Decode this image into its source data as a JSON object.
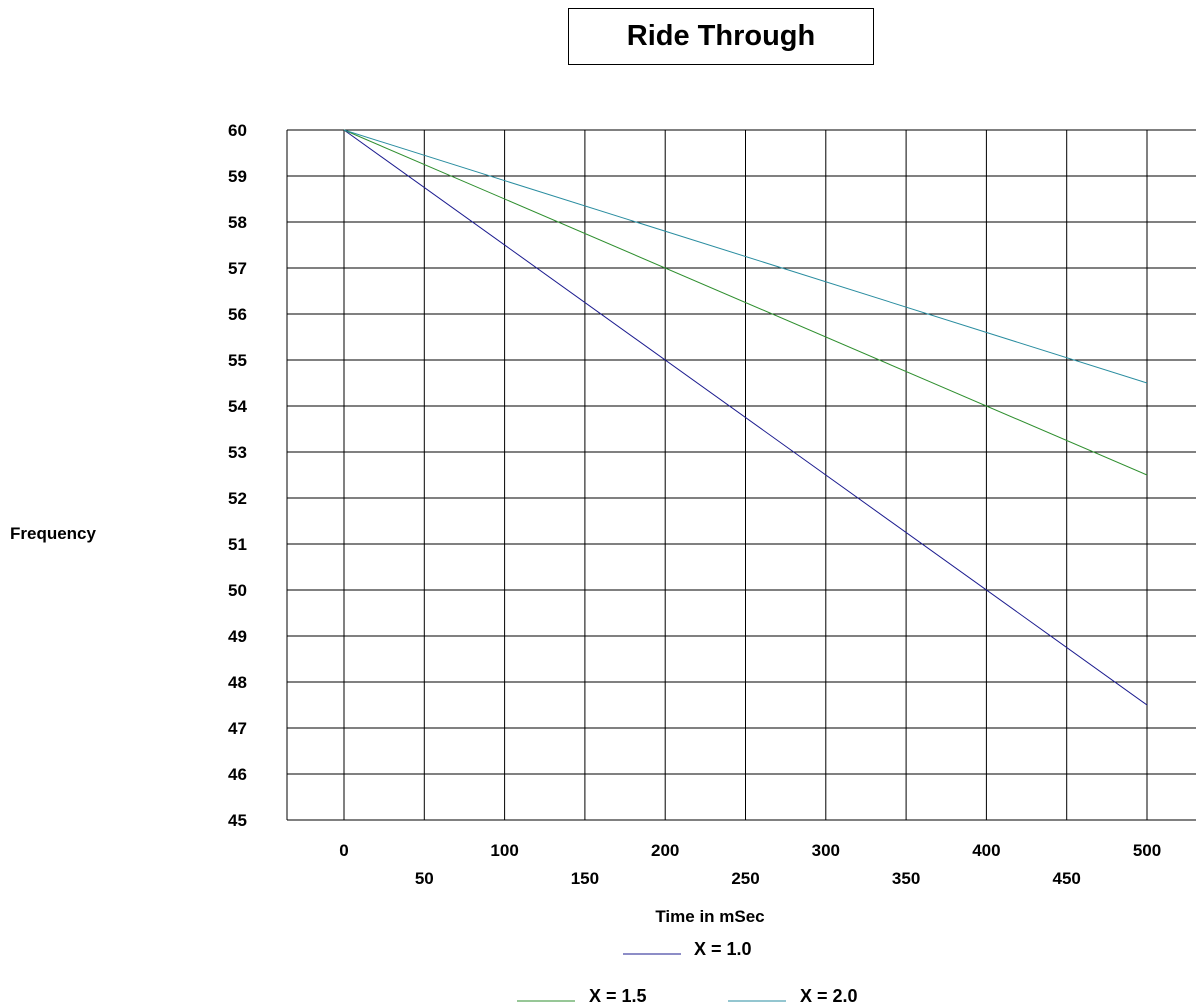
{
  "chart_data": {
    "type": "line",
    "title": "Ride Through",
    "xlabel": "Time in mSec",
    "ylabel": "Frequency",
    "xlim": [
      0,
      500
    ],
    "ylim": [
      45,
      60
    ],
    "grid": true,
    "legend_position": "bottom",
    "x_ticks": [
      "0",
      "50",
      "100",
      "150",
      "200",
      "250",
      "300",
      "350",
      "400",
      "450",
      "500"
    ],
    "y_ticks": [
      "60",
      "59",
      "58",
      "57",
      "56",
      "55",
      "54",
      "53",
      "52",
      "51",
      "50",
      "49",
      "48",
      "47",
      "46",
      "45"
    ],
    "x": [
      0,
      500
    ],
    "series": [
      {
        "name": "X = 1.0",
        "color": "#1b1b8f",
        "values": [
          60,
          47.5
        ]
      },
      {
        "name": "X = 1.5",
        "color": "#2f8f2f",
        "values": [
          60,
          52.5
        ]
      },
      {
        "name": "X = 2.0",
        "color": "#2a8da0",
        "values": [
          60,
          54.5
        ]
      }
    ]
  }
}
